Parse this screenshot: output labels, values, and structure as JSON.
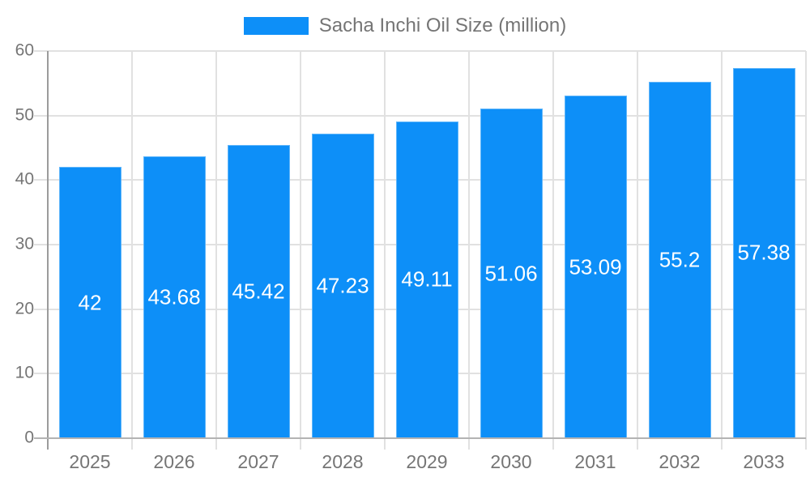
{
  "chart_data": {
    "type": "bar",
    "series_name": "Sacha Inchi Oil Size (million)",
    "categories": [
      "2025",
      "2026",
      "2027",
      "2028",
      "2029",
      "2030",
      "2031",
      "2032",
      "2033"
    ],
    "values": [
      42,
      43.68,
      45.42,
      47.23,
      49.11,
      51.06,
      53.09,
      55.2,
      57.38
    ],
    "title": "",
    "xlabel": "",
    "ylabel": "",
    "ylim": [
      0,
      60
    ],
    "yticks": [
      0,
      10,
      20,
      30,
      40,
      50,
      60
    ],
    "grid": true,
    "legend_position": "top-center",
    "bar_color": "#0D8FF8",
    "value_label_color": "#FFFFFF",
    "axis_text_color": "#757575",
    "gridline_color": "#E1E1E1",
    "y_axis_line_color": "#9B9B9B",
    "x_axis_line_color": "#B3B3B3"
  }
}
